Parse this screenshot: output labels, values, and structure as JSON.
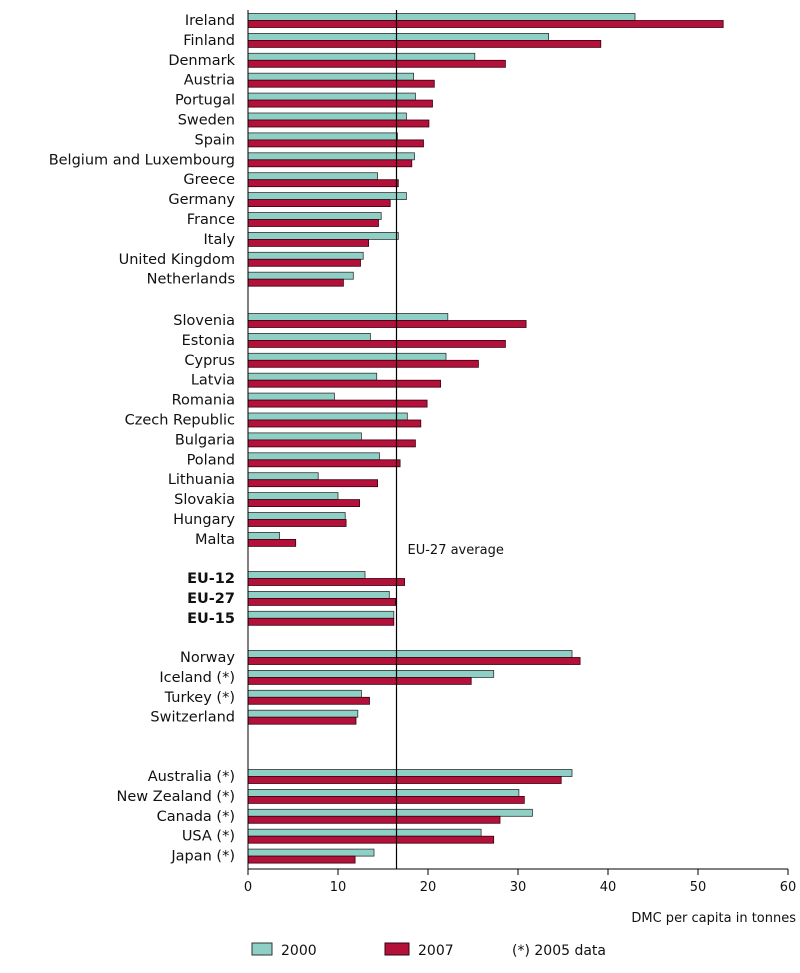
{
  "chart_data": {
    "type": "bar",
    "orientation": "horizontal",
    "xlabel": "DMC per capita in tonnes",
    "xlim": [
      0,
      60
    ],
    "xticks": [
      0,
      10,
      20,
      30,
      40,
      50,
      60
    ],
    "grid": false,
    "reference_line": {
      "label": "EU-27 average",
      "value": 16.5
    },
    "legend": {
      "placement": "bottom",
      "note": "(*) 2005 data"
    },
    "colors": {
      "2000": "#8fd0c6",
      "2007": "#b3103a"
    },
    "series": [
      {
        "name": "2000"
      },
      {
        "name": "2007"
      }
    ],
    "groups": [
      {
        "items": [
          {
            "label": "Ireland",
            "v2000": 43.0,
            "v2007": 52.8
          },
          {
            "label": "Finland",
            "v2000": 33.4,
            "v2007": 39.2
          },
          {
            "label": "Denmark",
            "v2000": 25.2,
            "v2007": 28.6
          },
          {
            "label": "Austria",
            "v2000": 18.4,
            "v2007": 20.7
          },
          {
            "label": "Portugal",
            "v2000": 18.6,
            "v2007": 20.5
          },
          {
            "label": "Sweden",
            "v2000": 17.6,
            "v2007": 20.1
          },
          {
            "label": "Spain",
            "v2000": 16.6,
            "v2007": 19.5
          },
          {
            "label": "Belgium and Luxembourg",
            "v2000": 18.5,
            "v2007": 18.2
          },
          {
            "label": "Greece",
            "v2000": 14.4,
            "v2007": 16.7
          },
          {
            "label": "Germany",
            "v2000": 17.6,
            "v2007": 15.8
          },
          {
            "label": "France",
            "v2000": 14.8,
            "v2007": 14.5
          },
          {
            "label": "Italy",
            "v2000": 16.7,
            "v2007": 13.4
          },
          {
            "label": "United Kingdom",
            "v2000": 12.8,
            "v2007": 12.5
          },
          {
            "label": "Netherlands",
            "v2000": 11.7,
            "v2007": 10.6
          }
        ]
      },
      {
        "items": [
          {
            "label": "Slovenia",
            "v2000": 22.2,
            "v2007": 30.9
          },
          {
            "label": "Estonia",
            "v2000": 13.6,
            "v2007": 28.6
          },
          {
            "label": "Cyprus",
            "v2000": 22.0,
            "v2007": 25.6
          },
          {
            "label": "Latvia",
            "v2000": 14.3,
            "v2007": 21.4
          },
          {
            "label": "Romania",
            "v2000": 9.6,
            "v2007": 19.9
          },
          {
            "label": "Czech Republic",
            "v2000": 17.7,
            "v2007": 19.2
          },
          {
            "label": "Bulgaria",
            "v2000": 12.6,
            "v2007": 18.6
          },
          {
            "label": "Poland",
            "v2000": 14.6,
            "v2007": 16.9
          },
          {
            "label": "Lithuania",
            "v2000": 7.8,
            "v2007": 14.4
          },
          {
            "label": "Slovakia",
            "v2000": 10.0,
            "v2007": 12.4
          },
          {
            "label": "Hungary",
            "v2000": 10.8,
            "v2007": 10.9
          },
          {
            "label": "Malta",
            "v2000": 3.5,
            "v2007": 5.3
          }
        ]
      },
      {
        "items": [
          {
            "label": "EU-12",
            "v2000": 13.0,
            "v2007": 17.4,
            "bold": true
          },
          {
            "label": "EU-27",
            "v2000": 15.7,
            "v2007": 16.4,
            "bold": true
          },
          {
            "label": "EU-15",
            "v2000": 16.2,
            "v2007": 16.2,
            "bold": true
          }
        ]
      },
      {
        "items": [
          {
            "label": "Norway",
            "v2000": 36.0,
            "v2007": 36.9
          },
          {
            "label": "Iceland (*)",
            "v2000": 27.3,
            "v2007": 24.8
          },
          {
            "label": "Turkey (*)",
            "v2000": 12.6,
            "v2007": 13.5
          },
          {
            "label": "Switzerland",
            "v2000": 12.2,
            "v2007": 12.0
          }
        ]
      },
      {
        "items": [
          {
            "label": "Australia (*)",
            "v2000": 36.0,
            "v2007": 34.8
          },
          {
            "label": "New Zealand (*)",
            "v2000": 30.1,
            "v2007": 30.7
          },
          {
            "label": "Canada (*)",
            "v2000": 31.6,
            "v2007": 28.0
          },
          {
            "label": "USA (*)",
            "v2000": 25.9,
            "v2007": 27.3
          },
          {
            "label": "Japan (*)",
            "v2000": 14.0,
            "v2007": 11.9
          }
        ]
      }
    ]
  }
}
